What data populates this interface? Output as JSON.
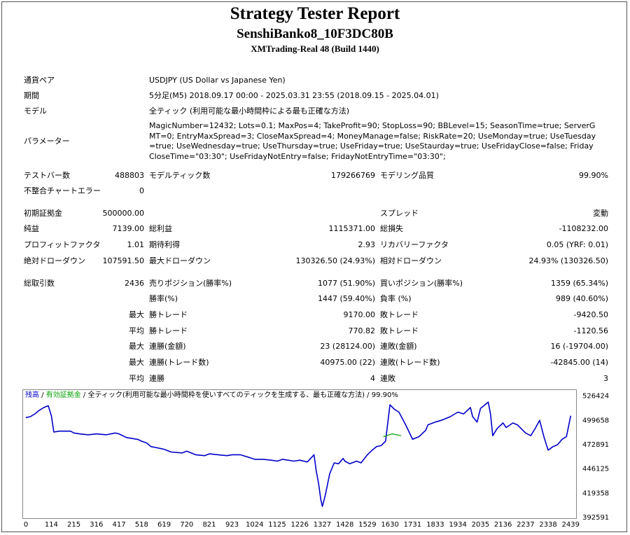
{
  "header": {
    "title": "Strategy Tester Report",
    "ea_name": "SenshiBanko8_10F3DC80B",
    "server": "XMTrading-Real 48 (Build 1440)"
  },
  "info": {
    "pair_label": "通貨ペア",
    "pair": "USDJPY (US Dollar vs Japanese Yen)",
    "period_label": "期間",
    "period": "5分足(M5) 2018.09.17 00:00 - 2025.03.31 23:55 (2018.09.15 - 2025.04.01)",
    "model_label": "モデル",
    "model": "全ティック (利用可能な最小時間枠による最も正確な方法)",
    "params_label": "パラメーター",
    "params": "MagicNumber=12432; Lots=0.1; MaxPos=4; TakeProfit=90; StopLoss=90; BBLevel=15; SeasonTime=true; ServerGMT=0; EntryMaxSpread=3; CloseMaxSpread=4; MoneyManage=false; RiskRate=20; UseMonday=true; UseTuesday=true; UseWednesday=true; UseThursday=true; UseFriday=true; UseStaurday=true; UseFridayClose=false; FridayCloseTime=\"03:30\"; UseFridayNotEntry=false; FridayNotEntryTime=\"03:30\";"
  },
  "stats": {
    "bars_label": "テストバー数",
    "bars": "488803",
    "ticks_label": "モデルティック数",
    "ticks": "179266769",
    "quality_label": "モデリング品質",
    "quality": "99.90%",
    "mismatch_label": "不整合チャートエラー",
    "mismatch": "0",
    "deposit_label": "初期証拠金",
    "deposit": "500000.00",
    "spread_label": "スプレッド",
    "spread": "変動",
    "net_label": "純益",
    "net": "7139.00",
    "gross_profit_label": "総利益",
    "gross_profit": "1115371.00",
    "gross_loss_label": "総損失",
    "gross_loss": "-1108232.00",
    "pf_label": "プロフィットファクタ",
    "pf": "1.01",
    "expected_label": "期待利得",
    "expected": "2.93",
    "recovery_label": "リカバリーファクタ",
    "recovery": "0.05 (YRF: 0.01)",
    "abs_dd_label": "絶対ドローダウン",
    "abs_dd": "107591.50",
    "max_dd_label": "最大ドローダウン",
    "max_dd": "130326.50 (24.93%)",
    "rel_dd_label": "相対ドローダウン",
    "rel_dd": "24.93% (130326.50)",
    "total_trades_label": "総取引数",
    "total_trades": "2436",
    "short_label": "売りポジション(勝率%)",
    "short": "1077 (51.90%)",
    "long_label": "買いポジション(勝率%)",
    "long": "1359 (65.34%)",
    "win_pct_label": "勝率(%)",
    "win_pct": "1447 (59.40%)",
    "loss_pct_label": "負率 (%)",
    "loss_pct": "989 (40.60%)",
    "max_word": "最大",
    "avg_word": "平均",
    "largest_win_label": "勝トレード",
    "largest_win": "9170.00",
    "largest_loss_label": "敗トレード",
    "largest_loss": "-9420.50",
    "avg_win_label": "勝トレード",
    "avg_win": "770.82",
    "avg_loss_label": "敗トレード",
    "avg_loss": "-1120.56",
    "max_cons_win_label": "連勝(金額)",
    "max_cons_win": "23 (28124.00)",
    "max_cons_loss_label": "連敗(金額)",
    "max_cons_loss": "16 (-19704.00)",
    "max_cons_profit_label": "連勝(トレード数)",
    "max_cons_profit": "40975.00 (22)",
    "max_cons_lossamt_label": "連敗(トレード数)",
    "max_cons_lossamt": "-42845.00 (14)",
    "avg_cons_win_label": "連勝",
    "avg_cons_win": "4",
    "avg_cons_loss_label": "連敗",
    "avg_cons_loss": "3"
  },
  "colors": {
    "balance": "#0000c8",
    "equity": "#00a000",
    "frame": "#888888"
  },
  "chart_data": {
    "type": "line",
    "legend": {
      "balance": "残高",
      "sep1": " / ",
      "equity": "有効証拠金",
      "sep2": " / ",
      "model": "全ティック(利用可能な最小時間枠を使いすべてのティックを生成する、最も正確な方法)",
      "sep3": " / ",
      "quality": "99.90%"
    },
    "x_ticks": [
      "0",
      "114",
      "215",
      "316",
      "417",
      "518",
      "619",
      "720",
      "821",
      "923",
      "1024",
      "1125",
      "1226",
      "1327",
      "1428",
      "1529",
      "1630",
      "1731",
      "1833",
      "1934",
      "2035",
      "2136",
      "2237",
      "2338",
      "2439"
    ],
    "y_ticks": [
      "526424",
      "499658",
      "472891",
      "446125",
      "419358",
      "392591"
    ],
    "xlim": [
      0,
      2460
    ],
    "ylim": [
      392591,
      530000
    ],
    "series": [
      {
        "name": "残高",
        "x": [
          0,
          20,
          40,
          60,
          80,
          100,
          114,
          125,
          150,
          200,
          215,
          240,
          280,
          316,
          360,
          400,
          417,
          450,
          500,
          518,
          540,
          560,
          580,
          600,
          619,
          650,
          700,
          720,
          760,
          800,
          821,
          860,
          900,
          923,
          960,
          1000,
          1024,
          1060,
          1100,
          1125,
          1150,
          1200,
          1226,
          1260,
          1290,
          1300,
          1310,
          1320,
          1327,
          1340,
          1360,
          1380,
          1400,
          1420,
          1428,
          1450,
          1480,
          1500,
          1529,
          1550,
          1570,
          1590,
          1610,
          1630,
          1650,
          1670,
          1700,
          1731,
          1760,
          1790,
          1800,
          1833,
          1860,
          1900,
          1934,
          1960,
          1990,
          2000,
          2020,
          2035,
          2050,
          2070,
          2080,
          2090,
          2110,
          2136,
          2150,
          2180,
          2200,
          2237,
          2260,
          2280,
          2300,
          2320,
          2338,
          2360,
          2380,
          2400,
          2420,
          2439
        ],
        "y": [
          502000,
          503000,
          506000,
          510000,
          513000,
          515000,
          504000,
          486000,
          487000,
          487000,
          485000,
          484000,
          483000,
          484000,
          483000,
          485000,
          484000,
          480000,
          478000,
          476000,
          474000,
          470000,
          469000,
          468000,
          467000,
          464000,
          463000,
          465000,
          461000,
          460000,
          462000,
          461000,
          460000,
          461000,
          461000,
          458000,
          456000,
          456000,
          455000,
          454000,
          456000,
          454000,
          455000,
          453000,
          461000,
          443000,
          430000,
          412000,
          404000,
          416000,
          440000,
          452000,
          451000,
          457000,
          454000,
          451000,
          454000,
          452000,
          461000,
          466000,
          470000,
          471000,
          476000,
          516000,
          511000,
          508000,
          494000,
          478000,
          481000,
          488000,
          494000,
          497000,
          499000,
          503000,
          508000,
          506000,
          513000,
          503000,
          497000,
          512000,
          515000,
          519000,
          506000,
          482000,
          490000,
          496000,
          491000,
          496000,
          494000,
          485000,
          482000,
          490000,
          499000,
          480000,
          466000,
          470000,
          472000,
          478000,
          481000,
          504000
        ]
      },
      {
        "name": "有効証拠金",
        "x": [
          1600,
          1640,
          1680
        ],
        "y": [
          481000,
          484000,
          482000
        ]
      }
    ]
  }
}
